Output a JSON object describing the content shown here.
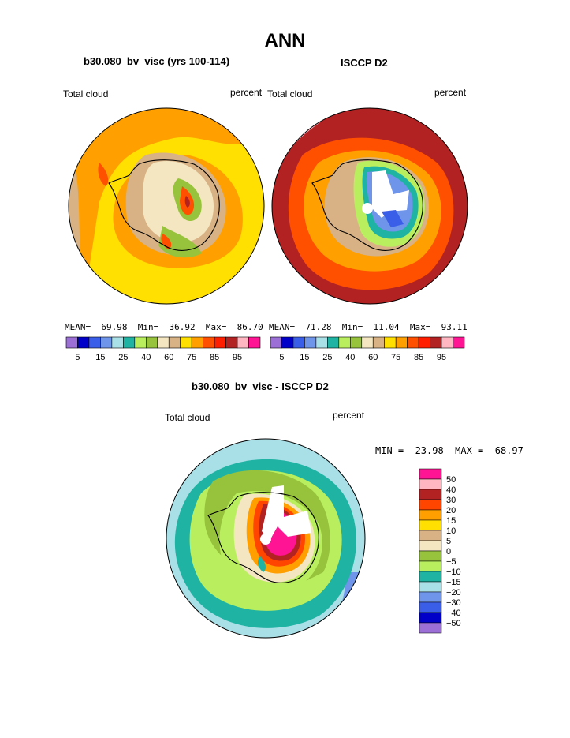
{
  "header": {
    "title": "ANN"
  },
  "panels": [
    {
      "title": "b30.080_bv_visc (yrs 100-114)",
      "left_label": "Total cloud",
      "right_label": "percent",
      "stats": {
        "mean_label": "MEAN=",
        "mean": "69.98",
        "min_label": "Min=",
        "min": "36.92",
        "max_label": "Max=",
        "max": "86.70"
      }
    },
    {
      "title": "ISCCP D2",
      "left_label": "Total cloud",
      "right_label": "percent",
      "stats": {
        "mean_label": "MEAN=",
        "mean": "71.28",
        "min_label": "Min=",
        "min": "11.04",
        "max_label": "Max=",
        "max": "93.11"
      }
    }
  ],
  "diff_panel": {
    "title": "b30.080_bv_visc - ISCCP D2",
    "left_label": "Total cloud",
    "right_label": "percent",
    "stats_text": "MIN = -23.98  MAX =  68.97"
  },
  "chart_data": [
    {
      "type": "heatmap",
      "projection": "south-polar-stereographic",
      "title": "b30.080_bv_visc (yrs 100-114)",
      "variable": "Total cloud",
      "units": "percent",
      "mean": 69.98,
      "min": 36.92,
      "max": 86.7,
      "colorbar_levels": [
        5,
        10,
        15,
        20,
        25,
        30,
        40,
        50,
        60,
        65,
        75,
        80,
        85,
        90,
        95
      ],
      "colorbar_tick_labels": [
        "5",
        "15",
        "25",
        "40",
        "60",
        "75",
        "85",
        "95"
      ],
      "colorbar_colors": [
        "#9b6fd6",
        "#0000c8",
        "#3b5ee8",
        "#6f95ea",
        "#a9dfe6",
        "#1fb3a3",
        "#b9ef5f",
        "#96c23c",
        "#f4e6c0",
        "#d8b284",
        "#ffe000",
        "#ffa000",
        "#ff5000",
        "#ff1e00",
        "#b22222",
        "#ffb6c1",
        "#ff1493"
      ]
    },
    {
      "type": "heatmap",
      "projection": "south-polar-stereographic",
      "title": "ISCCP D2",
      "variable": "Total cloud",
      "units": "percent",
      "mean": 71.28,
      "min": 11.04,
      "max": 93.11,
      "colorbar_levels": [
        5,
        10,
        15,
        20,
        25,
        30,
        40,
        50,
        60,
        65,
        75,
        80,
        85,
        90,
        95
      ],
      "colorbar_tick_labels": [
        "5",
        "15",
        "25",
        "40",
        "60",
        "75",
        "85",
        "95"
      ]
    },
    {
      "type": "heatmap",
      "projection": "south-polar-stereographic",
      "title": "b30.080_bv_visc - ISCCP D2",
      "variable": "Total cloud",
      "units": "percent",
      "min": -23.98,
      "max": 68.97,
      "colorbar_levels": [
        50,
        40,
        30,
        20,
        15,
        10,
        5,
        0,
        -5,
        -10,
        -15,
        -20,
        -30,
        -40,
        -50
      ],
      "colorbar_tick_labels": [
        "50",
        "40",
        "30",
        "20",
        "15",
        "10",
        "5",
        "0",
        "−5",
        "−10",
        "−15",
        "−20",
        "−30",
        "−40",
        "−50"
      ],
      "colorbar_colors": [
        "#ff1493",
        "#ffb6c1",
        "#b22222",
        "#ff4500",
        "#ffa000",
        "#ffe000",
        "#d8b284",
        "#f4e6c0",
        "#96c23c",
        "#b9ef5f",
        "#1fb3a3",
        "#a9dfe6",
        "#6f95ea",
        "#3b5ee8",
        "#0000c8",
        "#9b6fd6"
      ]
    }
  ]
}
